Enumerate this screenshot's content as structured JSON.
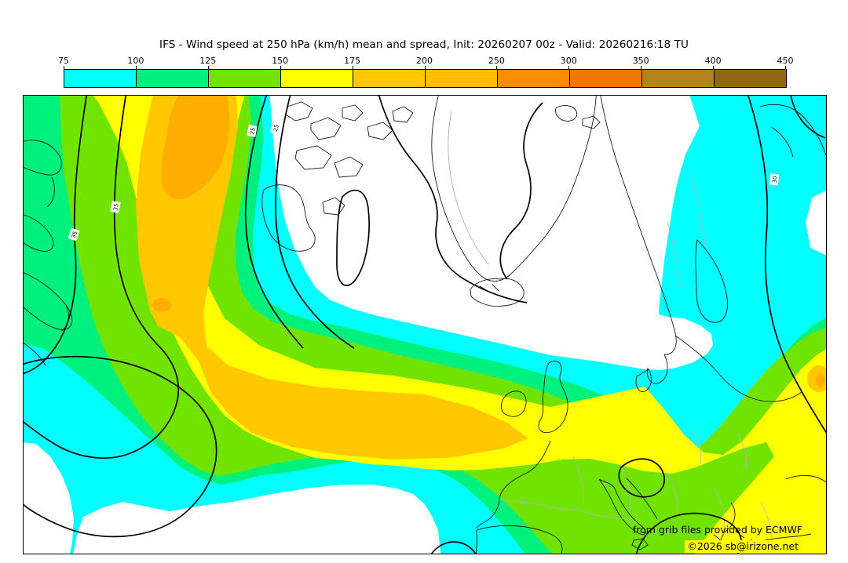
{
  "title": "IFS - Wind speed at 250 hPa (km/h) mean and spread, Init: 20260207 00z - Valid: 20260216:18 TU",
  "colorbar": {
    "ticks": [
      "75",
      "100",
      "125",
      "150",
      "175",
      "200",
      "250",
      "300",
      "350",
      "400",
      "450"
    ],
    "segment_colors": [
      "#00FFFF",
      "#00F07D",
      "#70E400",
      "#FFFF00",
      "#FFC800",
      "#FFBE00",
      "#FF8C00",
      "#F07800",
      "#B2821E",
      "#8F6612"
    ]
  },
  "map": {
    "palette": {
      "lt75": "#FFFFFF",
      "band75": "#00FFFF",
      "band100": "#00F07D",
      "band125": "#70E400",
      "band150": "#FFFF00",
      "band175": "#FFC800",
      "band200": "#FFAE00",
      "coast": "#1C1C1C",
      "border_gray": "#B3B3B3",
      "ice_gray": "#A6A6A6",
      "contour": "#000000"
    },
    "contour_labels": [
      {
        "text": "35"
      },
      {
        "text": "35"
      },
      {
        "text": "25"
      },
      {
        "text": "25"
      },
      {
        "text": "30"
      }
    ],
    "attribution_line1": "from grib files provided by ECMWF",
    "attribution_line2": "©2026 sb@irizone.net"
  }
}
